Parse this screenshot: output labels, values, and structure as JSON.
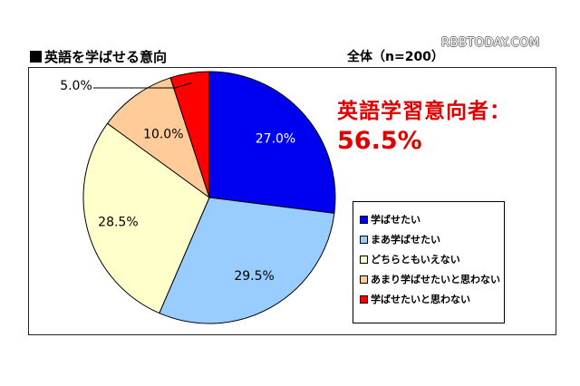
{
  "watermark": "RBBTODAY.COM",
  "chart_data": {
    "type": "pie",
    "title": "英語を学ばせる意向",
    "sample_label": "全体（n=200）",
    "headline": {
      "line1": "英語学習意向者：",
      "line2": "56.5%"
    },
    "categories": [
      "学ばせたい",
      "まあ学ばせたい",
      "どちらともいえない",
      "あまり学ばせたいと思わない",
      "学ばせたいと思わない"
    ],
    "values": [
      27.0,
      29.5,
      28.5,
      10.0,
      5.0
    ],
    "data_labels": [
      "27.0%",
      "29.5%",
      "28.5%",
      "10.0%",
      "5.0%"
    ],
    "colors": [
      "#0000f0",
      "#99ccff",
      "#ffffcc",
      "#ffcc99",
      "#ff0000"
    ],
    "legend_position": "right"
  }
}
